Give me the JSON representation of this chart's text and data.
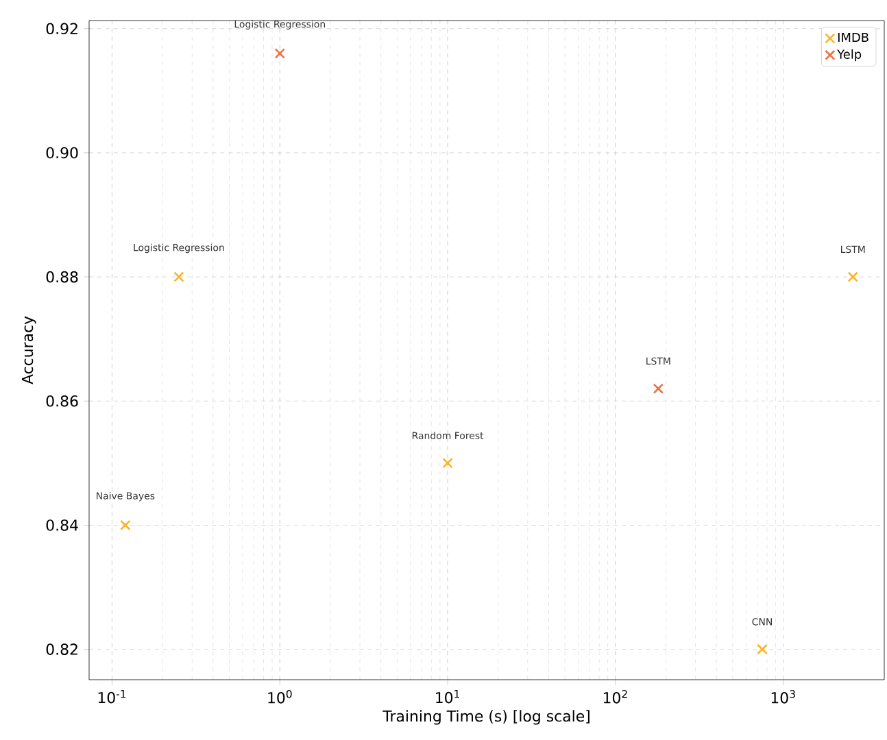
{
  "chart_data": {
    "type": "scatter",
    "xlabel": "Training Time (s) [log scale]",
    "ylabel": "Accuracy",
    "log": "x",
    "grid": true,
    "legend": "top right",
    "marker": "cross",
    "xlim": [
      0.073,
      4000
    ],
    "ylim": [
      0.8151,
      0.9213
    ],
    "xticks": [
      {
        "value": 0.1,
        "label": "10$^{-1}$"
      },
      {
        "value": 1,
        "label": "10$^{0}$"
      },
      {
        "value": 10,
        "label": "10$^{1}$"
      },
      {
        "value": 100,
        "label": "10$^{2}$"
      },
      {
        "value": 1000,
        "label": "10$^{3}$"
      }
    ],
    "yticks": [
      {
        "value": 0.82,
        "label": "0.82"
      },
      {
        "value": 0.84,
        "label": "0.84"
      },
      {
        "value": 0.86,
        "label": "0.86"
      },
      {
        "value": 0.88,
        "label": "0.88"
      },
      {
        "value": 0.9,
        "label": "0.90"
      },
      {
        "value": 0.92,
        "label": "0.92"
      }
    ],
    "series": [
      {
        "name": "IMDB",
        "color": "#fbb324",
        "x": [
          0.12,
          0.25,
          10,
          750,
          2600
        ],
        "values": [
          0.84,
          0.88,
          0.85,
          0.82,
          0.88
        ]
      },
      {
        "name": "Yelp",
        "color": "#f0703a",
        "x": [
          1,
          180
        ],
        "values": [
          0.916,
          0.862
        ]
      }
    ],
    "annotations": [
      {
        "text": "Naive Bayes",
        "x": 0.12,
        "y": 0.84
      },
      {
        "text": "Logistic Regression",
        "x": 0.25,
        "y": 0.88
      },
      {
        "text": "Random Forest",
        "x": 10,
        "y": 0.85
      },
      {
        "text": "CNN",
        "x": 750,
        "y": 0.82
      },
      {
        "text": "LSTM",
        "x": 2600,
        "y": 0.88
      },
      {
        "text": "Logistic Regression",
        "x": 1,
        "y": 0.916
      },
      {
        "text": "LSTM",
        "x": 180,
        "y": 0.862
      }
    ]
  }
}
